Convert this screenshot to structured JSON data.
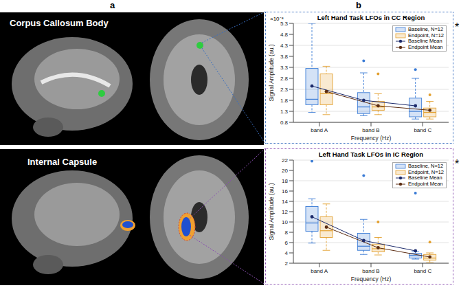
{
  "panel_labels": [
    "a",
    "b"
  ],
  "images": [
    {
      "label": "Corpus Callosum Body"
    },
    {
      "label": "Internal Capsule"
    }
  ],
  "chart_data": [
    {
      "type": "box",
      "title": "Left Hand Task LFOs in CC Region",
      "x_label": "Frequency (Hz)",
      "y_label": "Signal Amplitude (au.)",
      "y_multiplier_label": "×10⁻⁴",
      "significance": "*",
      "categories": [
        "band A",
        "band B",
        "band C"
      ],
      "ylim": [
        0.8,
        5.3
      ],
      "yticks": [
        0.8,
        1.3,
        1.8,
        2.3,
        2.8,
        3.3,
        3.8,
        4.3,
        4.8,
        5.3
      ],
      "grid": true,
      "legend": "upper right",
      "series": [
        {
          "name": "Baseline, N=12",
          "color": "#3a7bd5",
          "line_style": "dashed",
          "whisker_low": [
            1.25,
            1.1,
            0.95
          ],
          "q1": [
            1.6,
            1.2,
            1.05
          ],
          "median": [
            1.85,
            1.5,
            1.3
          ],
          "q3": [
            3.25,
            2.15,
            1.9
          ],
          "whisker_high": [
            5.3,
            3.05,
            2.8
          ],
          "outliers": [
            [],
            [
              3.6
            ],
            [
              3.2
            ]
          ],
          "mean": [
            2.45,
            1.8,
            1.55
          ]
        },
        {
          "name": "Endpoint, N=12",
          "color": "#e3a02f",
          "line_style": "dashed",
          "whisker_low": [
            1.15,
            1.15,
            0.95
          ],
          "q1": [
            1.6,
            1.35,
            1.05
          ],
          "median": [
            2.1,
            1.5,
            1.25
          ],
          "q3": [
            3,
            1.75,
            1.45
          ],
          "whisker_high": [
            3.35,
            2.1,
            1.75
          ],
          "outliers": [
            [],
            [
              3
            ],
            [
              2.05
            ]
          ],
          "mean": [
            2.2,
            1.55,
            1.35
          ]
        }
      ],
      "mean_lines": [
        {
          "name": "Baseline Mean",
          "color": "#1c2a6b",
          "marker": "circle"
        },
        {
          "name": "Endpoint Mean",
          "color": "#5c2d12",
          "marker": "circle"
        }
      ]
    },
    {
      "type": "box",
      "title": "Left Hand Task LFOs in IC Region",
      "x_label": "Frequency (Hz)",
      "y_label": "Signal Amplitude (au.)",
      "significance": "*",
      "categories": [
        "band A",
        "band B",
        "band C"
      ],
      "ylim": [
        2,
        22
      ],
      "yticks": [
        2,
        4,
        6,
        8,
        10,
        12,
        14,
        16,
        18,
        20,
        22
      ],
      "grid": true,
      "legend": "upper right",
      "series": [
        {
          "name": "Baseline, N=12",
          "color": "#3a7bd5",
          "line_style": "dashed",
          "whisker_low": [
            5.9,
            3.7,
            2.8
          ],
          "q1": [
            8.2,
            4.5,
            3
          ],
          "median": [
            9.8,
            5.3,
            3.5
          ],
          "q3": [
            13,
            7.8,
            3.9
          ],
          "whisker_high": [
            14.5,
            10.5,
            4.2
          ],
          "outliers": [
            [
              21.8
            ],
            [
              19
            ],
            [
              15.6
            ]
          ],
          "mean": [
            11,
            6.4,
            4.4
          ]
        },
        {
          "name": "Endpoint, N=12",
          "color": "#e3a02f",
          "line_style": "dashed",
          "whisker_low": [
            4.5,
            3.6,
            2.1
          ],
          "q1": [
            7,
            4.2,
            2.6
          ],
          "median": [
            8.3,
            4.8,
            3
          ],
          "q3": [
            11,
            5.7,
            3.7
          ],
          "whisker_high": [
            13.5,
            7,
            4
          ],
          "outliers": [
            [],
            [
              10
            ],
            [
              6.1
            ]
          ],
          "mean": [
            9,
            5,
            3.2
          ]
        }
      ],
      "mean_lines": [
        {
          "name": "Baseline Mean",
          "color": "#1c2a6b",
          "marker": "circle"
        },
        {
          "name": "Endpoint Mean",
          "color": "#5c2d12",
          "marker": "circle"
        }
      ]
    }
  ]
}
